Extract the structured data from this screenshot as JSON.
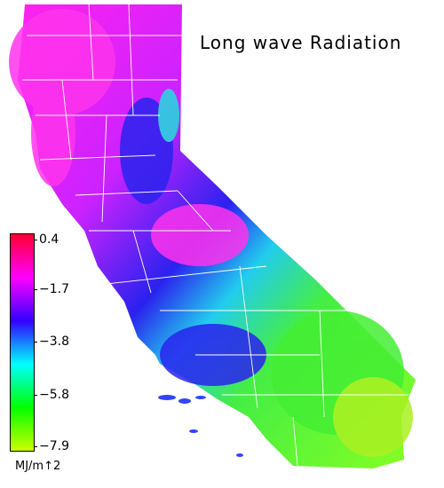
{
  "title": "Long wave Radiation",
  "legend": {
    "ticks": [
      "0.4",
      "−1.7",
      "−3.8",
      "−5.8",
      "−7.9"
    ],
    "units": "MJ/m↑2",
    "stops": [
      "#ff0033",
      "#ff00ff",
      "#3300ff",
      "#00ffff",
      "#00ff00",
      "#ccff00"
    ]
  },
  "colors": {
    "magenta": "#ff33ee",
    "blue": "#2a22ee",
    "cyan": "#22dddd",
    "green": "#44ee33",
    "yellowgreen": "#aaf022",
    "boundary": "#ffffff"
  }
}
